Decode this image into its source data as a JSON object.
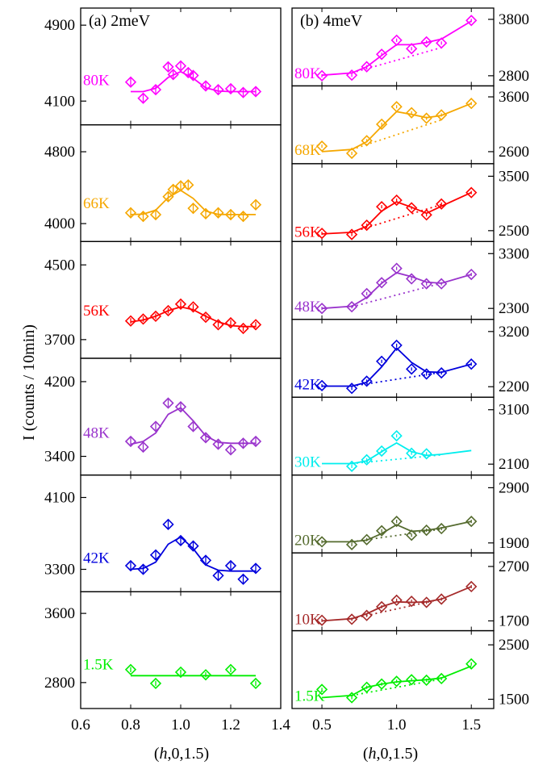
{
  "figure": {
    "ylabel": "I (counts / 10min)",
    "xlabel_prefix": "(",
    "xlabel_italic": "h",
    "xlabel_suffix": ",0,1.5)"
  },
  "chart_data": [
    {
      "type": "scatter",
      "panel_label": "(a) 2meV",
      "xlim": [
        0.6,
        1.4
      ],
      "xticks": [
        "0.6",
        "0.8",
        "1.0",
        "1.2",
        "1.4"
      ],
      "x_values": [
        0.6,
        0.8,
        1.0,
        1.2,
        1.4
      ],
      "subplots": [
        {
          "temp": "80K",
          "color": "#ff00ff",
          "ylim": [
            3850,
            5080
          ],
          "yticks": [
            4100,
            4900
          ],
          "x": [
            0.8,
            0.85,
            0.9,
            0.95,
            0.97,
            1.0,
            1.03,
            1.05,
            1.1,
            1.15,
            1.2,
            1.25,
            1.3
          ],
          "y": [
            4300,
            4130,
            4220,
            4460,
            4380,
            4470,
            4400,
            4370,
            4260,
            4220,
            4230,
            4190,
            4200
          ],
          "err": [
            40,
            40,
            40,
            40,
            40,
            40,
            40,
            40,
            40,
            40,
            40,
            40,
            40
          ],
          "fit_x": [
            0.8,
            0.85,
            0.9,
            0.95,
            1.0,
            1.05,
            1.1,
            1.15,
            1.2,
            1.25,
            1.3
          ],
          "fit_y": [
            4200,
            4200,
            4235,
            4350,
            4410,
            4340,
            4240,
            4205,
            4200,
            4200,
            4200
          ]
        },
        {
          "temp": "66K",
          "color": "#f5a700",
          "ylim": [
            3800,
            5100
          ],
          "yticks": [
            4000,
            4800
          ],
          "x": [
            0.8,
            0.85,
            0.9,
            0.95,
            0.97,
            1.0,
            1.03,
            1.05,
            1.1,
            1.15,
            1.2,
            1.25,
            1.3
          ],
          "y": [
            4120,
            4080,
            4100,
            4300,
            4380,
            4420,
            4430,
            4170,
            4110,
            4120,
            4100,
            4080,
            4210
          ],
          "err": [
            60,
            60,
            60,
            60,
            60,
            60,
            60,
            60,
            60,
            60,
            60,
            60,
            60
          ],
          "fit_x": [
            0.8,
            0.85,
            0.9,
            0.95,
            1.0,
            1.05,
            1.1,
            1.15,
            1.2,
            1.25,
            1.3
          ],
          "fit_y": [
            4100,
            4105,
            4150,
            4290,
            4370,
            4280,
            4140,
            4102,
            4100,
            4100,
            4100
          ]
        },
        {
          "temp": "56K",
          "color": "#ff0000",
          "ylim": [
            3500,
            4750
          ],
          "yticks": [
            3700,
            4500
          ],
          "x": [
            0.8,
            0.85,
            0.9,
            0.95,
            1.0,
            1.05,
            1.1,
            1.15,
            1.2,
            1.25,
            1.3
          ],
          "y": [
            3900,
            3920,
            3950,
            4010,
            4080,
            4050,
            3940,
            3860,
            3880,
            3820,
            3860
          ],
          "err": [
            30,
            30,
            30,
            30,
            30,
            30,
            30,
            30,
            30,
            30,
            30
          ],
          "fit_x": [
            0.8,
            0.85,
            0.9,
            0.95,
            1.0,
            1.05,
            1.1,
            1.15,
            1.2,
            1.25,
            1.3
          ],
          "fit_y": [
            3890,
            3910,
            3950,
            4010,
            4050,
            4020,
            3950,
            3890,
            3850,
            3840,
            3840
          ]
        },
        {
          "temp": "48K",
          "color": "#9933cc",
          "ylim": [
            3200,
            4450
          ],
          "yticks": [
            3400,
            4200
          ],
          "x": [
            0.8,
            0.85,
            0.9,
            0.95,
            1.0,
            1.05,
            1.1,
            1.15,
            1.2,
            1.25,
            1.3
          ],
          "y": [
            3560,
            3500,
            3720,
            3970,
            3930,
            3720,
            3600,
            3530,
            3470,
            3540,
            3560
          ],
          "err": [
            40,
            40,
            40,
            40,
            40,
            40,
            40,
            40,
            40,
            40,
            40
          ],
          "fit_x": [
            0.8,
            0.85,
            0.9,
            0.95,
            1.0,
            1.05,
            1.1,
            1.15,
            1.2,
            1.25,
            1.3
          ],
          "fit_y": [
            3530,
            3560,
            3650,
            3850,
            3920,
            3780,
            3620,
            3550,
            3540,
            3540,
            3540
          ]
        },
        {
          "temp": "42K",
          "color": "#0000dd",
          "ylim": [
            3050,
            4350
          ],
          "yticks": [
            3300,
            4100
          ],
          "x": [
            0.8,
            0.85,
            0.9,
            0.95,
            1.0,
            1.05,
            1.1,
            1.15,
            1.2,
            1.25,
            1.3
          ],
          "y": [
            3340,
            3300,
            3460,
            3800,
            3620,
            3560,
            3400,
            3230,
            3340,
            3190,
            3310
          ],
          "err": [
            50,
            50,
            50,
            50,
            50,
            50,
            50,
            50,
            50,
            50,
            50
          ],
          "fit_x": [
            0.8,
            0.85,
            0.9,
            0.95,
            1.0,
            1.05,
            1.1,
            1.15,
            1.2,
            1.25,
            1.3
          ],
          "fit_y": [
            3300,
            3310,
            3380,
            3580,
            3660,
            3530,
            3350,
            3290,
            3280,
            3280,
            3280
          ]
        },
        {
          "temp": "1.5K",
          "color": "#00ee00",
          "ylim": [
            2500,
            3850
          ],
          "yticks": [
            2800,
            3600
          ],
          "x": [
            0.8,
            0.9,
            1.0,
            1.1,
            1.2,
            1.3
          ],
          "y": [
            2950,
            2790,
            2920,
            2890,
            2950,
            2790
          ],
          "err": [
            30,
            30,
            30,
            30,
            30,
            30
          ],
          "fit_x": [
            0.8,
            1.3
          ],
          "fit_y": [
            2880,
            2880
          ]
        }
      ]
    },
    {
      "type": "scatter",
      "panel_label": "(b) 4meV",
      "xlim": [
        0.3,
        1.65
      ],
      "xticks": [
        "0.5",
        "1.0",
        "1.5"
      ],
      "x_values": [
        0.5,
        1.0,
        1.5
      ],
      "subplots": [
        {
          "temp": "80K",
          "color": "#ff00ff",
          "ylim": [
            2620,
            4000
          ],
          "yticks": [
            2800,
            3800
          ],
          "x": [
            0.5,
            0.7,
            0.8,
            0.9,
            1.0,
            1.1,
            1.2,
            1.3,
            1.5
          ],
          "y": [
            2800,
            2810,
            2960,
            3180,
            3430,
            3280,
            3400,
            3380,
            3780
          ],
          "err": [
            30,
            30,
            30,
            30,
            30,
            30,
            30,
            30,
            30
          ],
          "fit_x": [
            0.5,
            0.7,
            0.8,
            0.9,
            1.0,
            1.1,
            1.2,
            1.3,
            1.5
          ],
          "fit_y": [
            2810,
            2850,
            2960,
            3160,
            3350,
            3350,
            3390,
            3450,
            3770
          ],
          "base_x": [
            0.7,
            1.3
          ],
          "base_y": [
            2850,
            3300
          ]
        },
        {
          "temp": "68K",
          "color": "#f5a700",
          "ylim": [
            2380,
            3800
          ],
          "yticks": [
            2600,
            3600
          ],
          "x": [
            0.5,
            0.7,
            0.8,
            0.9,
            1.0,
            1.1,
            1.2,
            1.3,
            1.5
          ],
          "y": [
            2700,
            2570,
            2800,
            3100,
            3420,
            3310,
            3210,
            3270,
            3480
          ],
          "err": [
            30,
            30,
            30,
            30,
            30,
            30,
            30,
            30,
            30
          ],
          "fit_x": [
            0.5,
            0.7,
            0.8,
            0.9,
            1.0,
            1.1,
            1.2,
            1.3,
            1.5
          ],
          "fit_y": [
            2600,
            2640,
            2780,
            3060,
            3330,
            3280,
            3220,
            3260,
            3480
          ],
          "base_x": [
            0.7,
            1.3
          ],
          "base_y": [
            2640,
            3180
          ]
        },
        {
          "temp": "56K",
          "color": "#ff0000",
          "ylim": [
            2300,
            3730
          ],
          "yticks": [
            2500,
            3500
          ],
          "x": [
            0.5,
            0.7,
            0.8,
            0.9,
            1.0,
            1.1,
            1.2,
            1.3,
            1.5
          ],
          "y": [
            2450,
            2430,
            2600,
            2940,
            3060,
            2920,
            2790,
            2990,
            3200
          ],
          "err": [
            30,
            30,
            30,
            30,
            30,
            30,
            30,
            30,
            30
          ],
          "fit_x": [
            0.5,
            0.7,
            0.8,
            0.9,
            1.0,
            1.1,
            1.2,
            1.3,
            1.5
          ],
          "fit_y": [
            2440,
            2470,
            2580,
            2860,
            3030,
            2930,
            2820,
            2950,
            3200
          ],
          "base_x": [
            0.7,
            1.3
          ],
          "base_y": [
            2470,
            2980
          ]
        },
        {
          "temp": "48K",
          "color": "#9933cc",
          "ylim": [
            2100,
            3520
          ],
          "yticks": [
            2300,
            3300
          ],
          "x": [
            0.5,
            0.7,
            0.8,
            0.9,
            1.0,
            1.1,
            1.2,
            1.3,
            1.5
          ],
          "y": [
            2300,
            2330,
            2570,
            2770,
            3030,
            2840,
            2750,
            2750,
            2920
          ],
          "err": [
            30,
            30,
            30,
            30,
            30,
            30,
            30,
            30,
            30
          ],
          "fit_x": [
            0.5,
            0.7,
            0.8,
            0.9,
            1.0,
            1.1,
            1.2,
            1.3,
            1.5
          ],
          "fit_y": [
            2300,
            2340,
            2500,
            2760,
            2950,
            2880,
            2780,
            2760,
            2920
          ],
          "base_x": [
            0.7,
            1.3
          ],
          "base_y": [
            2330,
            2760
          ]
        },
        {
          "temp": "42K",
          "color": "#0000dd",
          "ylim": [
            2010,
            3420
          ],
          "yticks": [
            2200,
            3200
          ],
          "x": [
            0.5,
            0.7,
            0.8,
            0.9,
            1.0,
            1.1,
            1.2,
            1.3,
            1.5
          ],
          "y": [
            2220,
            2170,
            2300,
            2660,
            2950,
            2520,
            2430,
            2450,
            2610
          ],
          "err": [
            30,
            30,
            30,
            30,
            30,
            30,
            30,
            30,
            30
          ],
          "fit_x": [
            0.5,
            0.7,
            0.8,
            0.9,
            1.0,
            1.1,
            1.2,
            1.3,
            1.5
          ],
          "fit_y": [
            2210,
            2210,
            2280,
            2560,
            2900,
            2640,
            2470,
            2460,
            2610
          ],
          "base_x": [
            0.7,
            1.3
          ],
          "base_y": [
            2210,
            2460
          ]
        },
        {
          "temp": "30K",
          "color": "#00eeee",
          "ylim": [
            1900,
            3330
          ],
          "yticks": [
            2100,
            3100
          ],
          "x": [
            0.7,
            0.8,
            0.9,
            1.0,
            1.1,
            1.2
          ],
          "y": [
            2060,
            2180,
            2340,
            2620,
            2300,
            2290
          ],
          "err": [
            30,
            30,
            30,
            30,
            30,
            30
          ],
          "fit_x": [
            0.5,
            0.7,
            0.8,
            0.9,
            1.0,
            1.1,
            1.2,
            1.3,
            1.5
          ],
          "fit_y": [
            2110,
            2110,
            2160,
            2330,
            2490,
            2330,
            2260,
            2280,
            2350
          ],
          "base_x": [
            0.7,
            1.3
          ],
          "base_y": [
            2110,
            2270
          ]
        },
        {
          "temp": "20K",
          "color": "#556b2f",
          "ylim": [
            1720,
            3130
          ],
          "yticks": [
            1900,
            2900
          ],
          "x": [
            0.5,
            0.7,
            0.8,
            0.9,
            1.0,
            1.1,
            1.2,
            1.3,
            1.5
          ],
          "y": [
            1920,
            1870,
            1960,
            2120,
            2290,
            2040,
            2130,
            2160,
            2290
          ],
          "err": [
            30,
            30,
            30,
            30,
            30,
            30,
            30,
            30,
            30
          ],
          "fit_x": [
            0.5,
            0.7,
            0.8,
            0.9,
            1.0,
            1.1,
            1.2,
            1.3,
            1.5
          ],
          "fit_y": [
            1920,
            1920,
            1950,
            2070,
            2230,
            2110,
            2130,
            2170,
            2290
          ],
          "base_x": [
            0.7,
            1.3
          ],
          "base_y": [
            1920,
            2150
          ]
        },
        {
          "temp": "10K",
          "color": "#a52a2a",
          "ylim": [
            1520,
            2950
          ],
          "yticks": [
            1700,
            2700
          ],
          "x": [
            0.5,
            0.7,
            0.8,
            0.9,
            1.0,
            1.1,
            1.2,
            1.3,
            1.5
          ],
          "y": [
            1710,
            1730,
            1800,
            1960,
            2080,
            2060,
            2040,
            2100,
            2330
          ],
          "err": [
            30,
            30,
            30,
            30,
            30,
            30,
            30,
            30,
            30
          ],
          "fit_x": [
            0.5,
            0.7,
            0.8,
            0.9,
            1.0,
            1.1,
            1.2,
            1.3,
            1.5
          ],
          "fit_y": [
            1700,
            1740,
            1830,
            1960,
            2050,
            2040,
            2050,
            2100,
            2330
          ],
          "base_x": [
            0.7,
            1.3
          ],
          "base_y": [
            1740,
            2100
          ]
        },
        {
          "temp": "1.5K",
          "color": "#00ee00",
          "ylim": [
            1330,
            2760
          ],
          "yticks": [
            1500,
            2500
          ],
          "x": [
            0.5,
            0.7,
            0.8,
            0.9,
            1.0,
            1.1,
            1.2,
            1.3,
            1.5
          ],
          "y": [
            1680,
            1530,
            1720,
            1780,
            1830,
            1860,
            1850,
            1880,
            2150
          ],
          "err": [
            30,
            30,
            30,
            30,
            30,
            30,
            30,
            30,
            30
          ],
          "fit_x": [
            0.5,
            0.7,
            0.8,
            0.9,
            1.0,
            1.1,
            1.2,
            1.3,
            1.5
          ],
          "fit_y": [
            1530,
            1570,
            1720,
            1780,
            1820,
            1840,
            1860,
            1890,
            2110
          ],
          "base_x": [
            0.7,
            1.3
          ],
          "base_y": [
            1570,
            1870
          ]
        }
      ]
    }
  ]
}
